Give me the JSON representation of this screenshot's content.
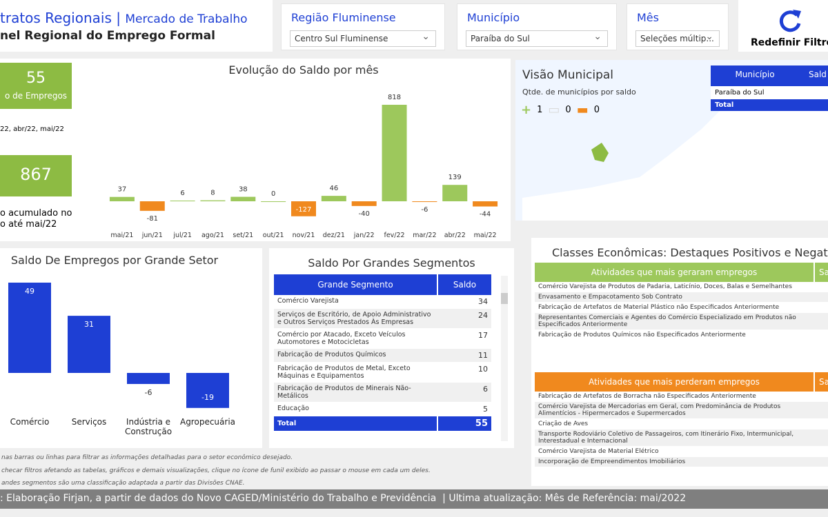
{
  "header": {
    "title": "tratos Regionais",
    "separator": "|",
    "subtitle": "Mercado de Trabalho",
    "panel": "nel Regional do Emprego Formal"
  },
  "filters": [
    {
      "label": "Região Fluminense",
      "value": "Centro Sul Fluminense"
    },
    {
      "label": "Município",
      "value": "Paraíba do Sul"
    },
    {
      "label": "Mês",
      "value": "Seleções múltip..."
    }
  ],
  "reset_button": "Redefinir Filtro",
  "kpis": [
    {
      "value": 55,
      "label": "o de Empregos",
      "note": "22, abr/22, mai/22"
    },
    {
      "value": 867,
      "label": "o acumulado no",
      "note": "o até mai/22"
    }
  ],
  "chart_data": [
    {
      "type": "bar",
      "title": "Evolução do Saldo por mês",
      "categories": [
        "mai/21",
        "jun/21",
        "jul/21",
        "ago/21",
        "set/21",
        "out/21",
        "nov/21",
        "dez/21",
        "jan/22",
        "fev/22",
        "mar/22",
        "abr/22",
        "mai/22"
      ],
      "values": [
        37,
        -81,
        6,
        8,
        38,
        0,
        -127,
        46,
        -40,
        818,
        -6,
        139,
        -44
      ],
      "positive_color": "#9dc85c",
      "negative_color": "#f0891e"
    },
    {
      "type": "bar",
      "title": "Saldo De Empregos por Grande Setor",
      "categories": [
        "Comércio",
        "Serviços",
        "Indústria e Construção",
        "Agropecuária"
      ],
      "values": [
        49,
        31,
        -6,
        -19
      ],
      "color": "#1e3fd4"
    }
  ],
  "map_panel": {
    "title": "Visão Municipal",
    "legend_title": "Qtde. de municípios por saldo",
    "legend": [
      {
        "count": 1,
        "color": "#9dc85c"
      },
      {
        "count": 0,
        "color": "#d9d9d9"
      },
      {
        "count": 0,
        "color": "#f0891e"
      }
    ],
    "table": {
      "columns": [
        "Município",
        "Sald"
      ],
      "rows": [
        "Paraíba do Sul"
      ],
      "total": "Total"
    }
  },
  "segments_table": {
    "title": "Saldo Por Grandes Segmentos",
    "columns": [
      "Grande Segmento",
      "Saldo"
    ],
    "rows": [
      [
        "Comércio Varejista",
        34
      ],
      [
        "Serviços de Escritório, de Apoio Administrativo e Outros Serviços Prestados Às Empresas",
        24
      ],
      [
        "Comércio por Atacado, Exceto Veículos Automotores e Motocicletas",
        17
      ],
      [
        "Fabricação de Produtos Químicos",
        11
      ],
      [
        "Fabricação de Produtos de Metal, Exceto Máquinas e Equipamentos",
        10
      ],
      [
        "Fabricação de Produtos de Minerais Não-Metálicos",
        6
      ],
      [
        "Educação",
        5
      ]
    ],
    "total": [
      "Total",
      55
    ]
  },
  "classes": {
    "title": "Classes Econômicas: Destaques Positivos e Negativ",
    "positive": {
      "columns": [
        "Atividades que mais geraram empregos",
        "Sa"
      ],
      "color": "#9dc85c",
      "rows": [
        "Comércio Varejista de Produtos de Padaria, Laticínio, Doces, Balas e Semelhantes",
        "Envasamento e Empacotamento Sob Contrato",
        "Fabricação de Artefatos de Material Plástico não Especificados Anteriormente",
        "Representantes Comerciais e Agentes do Comércio Especializado em Produtos não Especificados Anteriormente",
        "Fabricação de Produtos Químicos não Especificados Anteriormente"
      ]
    },
    "negative": {
      "columns": [
        "Atividades que mais perderam empregos",
        "Sa"
      ],
      "color": "#f0891e",
      "rows": [
        "Fabricação de Artefatos de Borracha não Especificados Anteriormente",
        "Comércio Varejista de Mercadorias em Geral, com Predominância de Produtos Alimentícios - Hipermercados e Supermercados",
        "Criação de Aves",
        "Transporte Rodoviário Coletivo de Passageiros, com Itinerário Fixo, Intermunicipal, Interestadual e Internacional",
        "Comércio Varejista de Material Elétrico",
        "Incorporação de Empreendimentos Imobiliários"
      ]
    }
  },
  "notes": [
    "nas barras ou linhas para filtrar as informações detalhadas para o setor econômico desejado.",
    "checar filtros afetando as tabelas, gráficos e demais visualizações, clique no ícone de funil exibido ao passar o mouse em cada um deles.",
    "andes segmentos são uma classificação adaptada a partir das Divisões CNAE."
  ],
  "footer": ": Elaboração Firjan, a partir de dados do Novo CAGED/Ministério do Trabalho e Previdência  | Ultima atualização: Mês de Referência: mai/2022"
}
